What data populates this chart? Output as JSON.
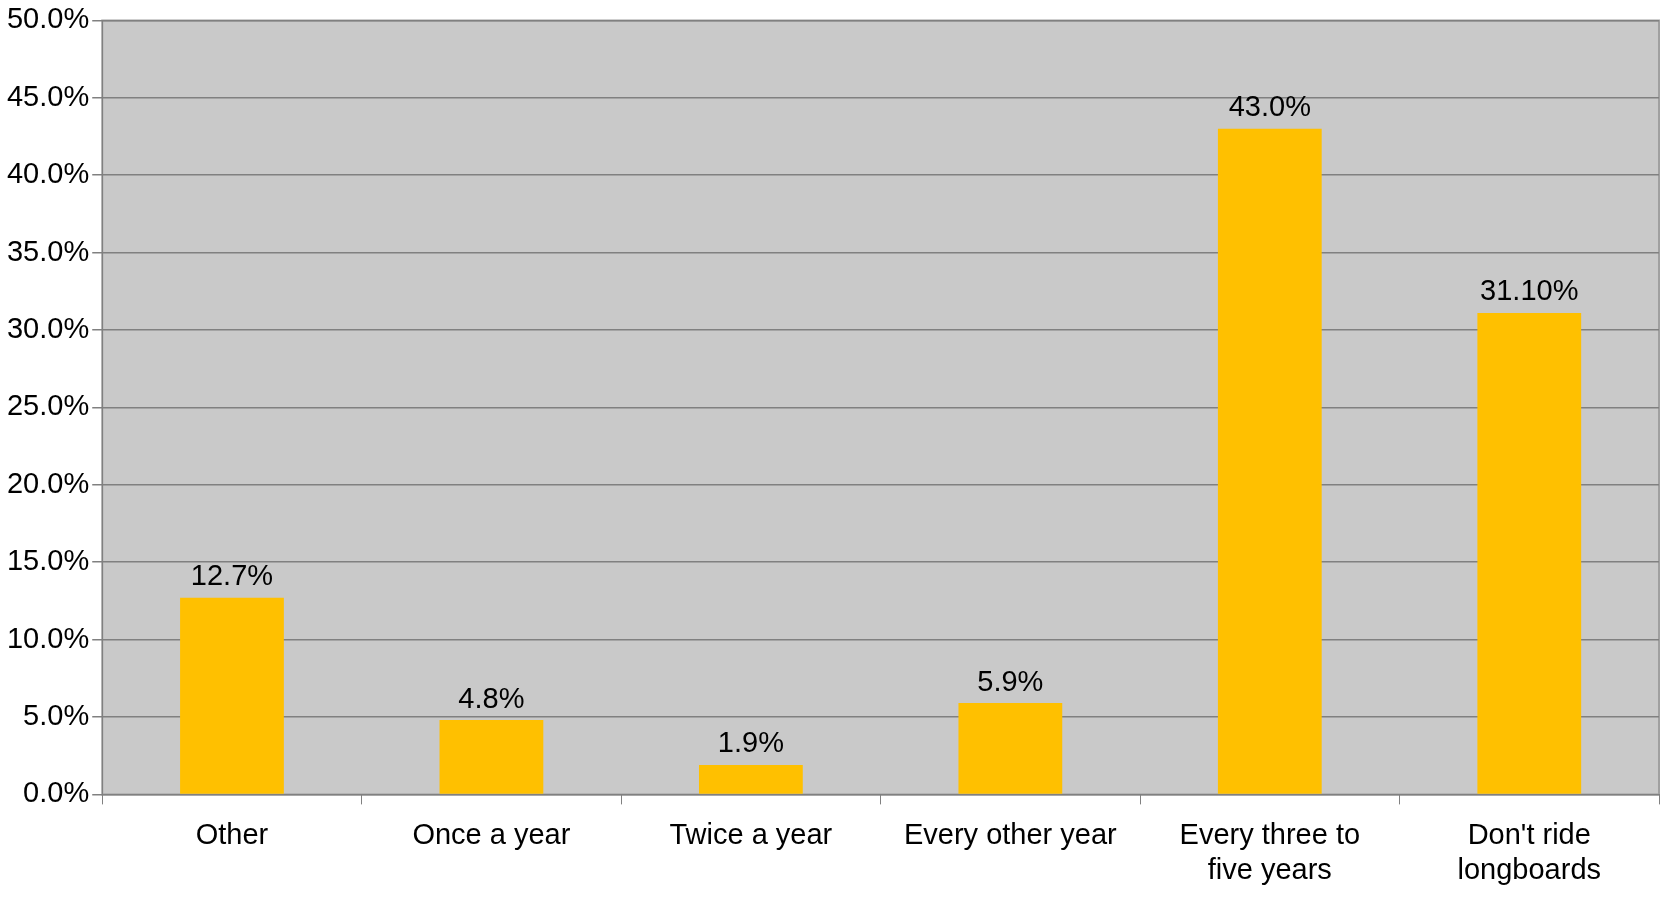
{
  "chart_data": {
    "type": "bar",
    "categories": [
      "Other",
      "Once a year",
      "Twice a year",
      "Every other year",
      "Every three to five years",
      "Don't ride longboards"
    ],
    "values": [
      12.7,
      4.8,
      1.9,
      5.9,
      43.0,
      31.1
    ],
    "value_labels": [
      "12.7%",
      "4.8%",
      "1.9%",
      "5.9%",
      "43.0%",
      "31.10%"
    ],
    "color": "#ffc000",
    "ylim": [
      0,
      50
    ],
    "yticks": [
      {
        "value": 0,
        "label": "0.0%"
      },
      {
        "value": 5,
        "label": "5.0%"
      },
      {
        "value": 10,
        "label": "10.0%"
      },
      {
        "value": 15,
        "label": "15.0%"
      },
      {
        "value": 20,
        "label": "20.0%"
      },
      {
        "value": 25,
        "label": "25.0%"
      },
      {
        "value": 30,
        "label": "30.0%"
      },
      {
        "value": 35,
        "label": "35.0%"
      },
      {
        "value": 40,
        "label": "40.0%"
      },
      {
        "value": 45,
        "label": "45.0%"
      },
      {
        "value": 50,
        "label": "50.0%"
      }
    ],
    "grid": "y"
  }
}
